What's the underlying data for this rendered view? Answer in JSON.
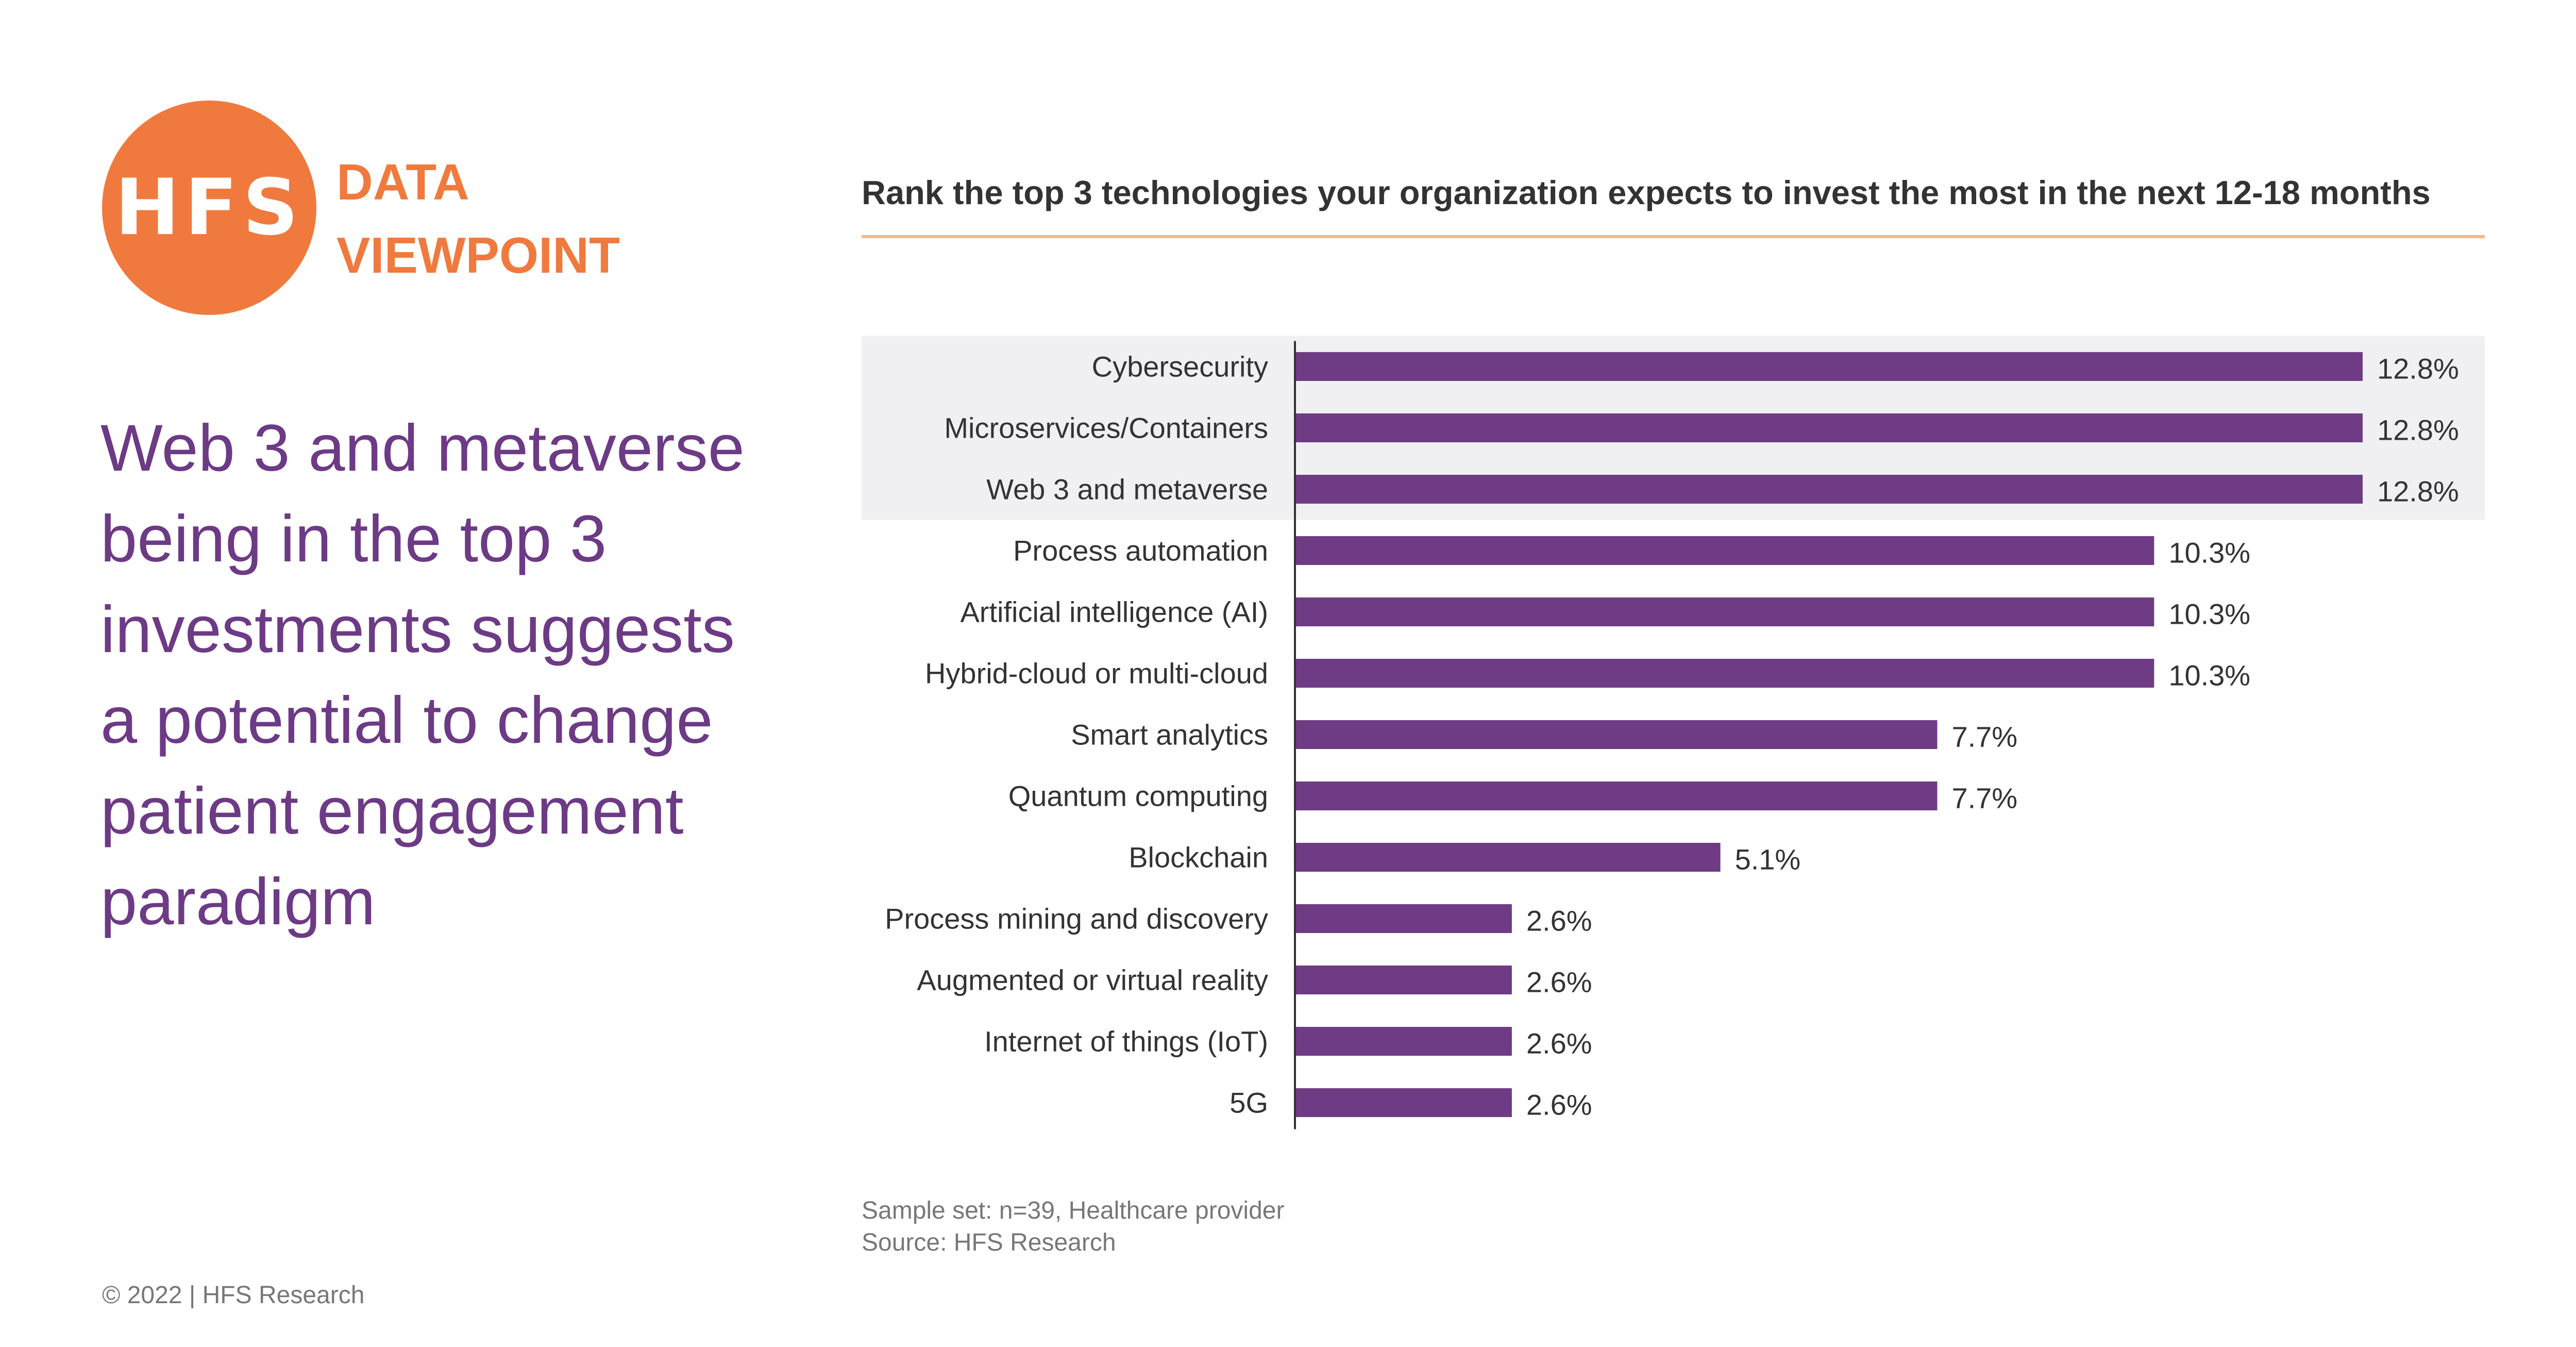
{
  "brand": {
    "logo_text": "HFS",
    "label_lines": [
      "DATA",
      "VIEWPOINT"
    ],
    "logo_color": "#f07a3e"
  },
  "headline": {
    "lines": [
      "Web 3 and metaverse",
      "being in the top 3",
      "investments suggests",
      "a potential to change",
      "patient engagement",
      "paradigm"
    ],
    "color": "#6d3a85"
  },
  "chart_data": {
    "type": "bar",
    "orientation": "horizontal",
    "title": "Rank the top 3 technologies your organization expects to invest the most in the next 12-18 months",
    "categories": [
      "Cybersecurity",
      "Microservices/Containers",
      "Web 3 and metaverse",
      "Process automation",
      "Artificial intelligence (AI)",
      "Hybrid-cloud or multi-cloud",
      "Smart analytics",
      "Quantum computing",
      "Blockchain",
      "Process mining and discovery",
      "Augmented or virtual reality",
      "Internet of things (IoT)",
      "5G"
    ],
    "values": [
      12.8,
      12.8,
      12.8,
      10.3,
      10.3,
      10.3,
      7.7,
      7.7,
      5.1,
      2.6,
      2.6,
      2.6,
      2.6
    ],
    "value_labels": [
      "12.8%",
      "12.8%",
      "12.8%",
      "10.3%",
      "10.3%",
      "10.3%",
      "7.7%",
      "7.7%",
      "5.1%",
      "2.6%",
      "2.6%",
      "2.6%",
      "2.6%"
    ],
    "highlighted_categories": [
      "Cybersecurity",
      "Microservices/Containers",
      "Web 3 and metaverse"
    ],
    "xlim": [
      0,
      12.8
    ],
    "xlabel": "",
    "ylabel": "",
    "grid": false,
    "legend": "none",
    "colors": {
      "bar": "#6e3b84",
      "highlight_band": "#f0f0f2",
      "rule": "#f4b88f",
      "axis": "#333333",
      "label": "#333333"
    }
  },
  "footnote": {
    "lines": [
      "Sample set: n=39, Healthcare provider",
      "Source: HFS Research"
    ]
  },
  "copyright": "© 2022 | HFS Research"
}
